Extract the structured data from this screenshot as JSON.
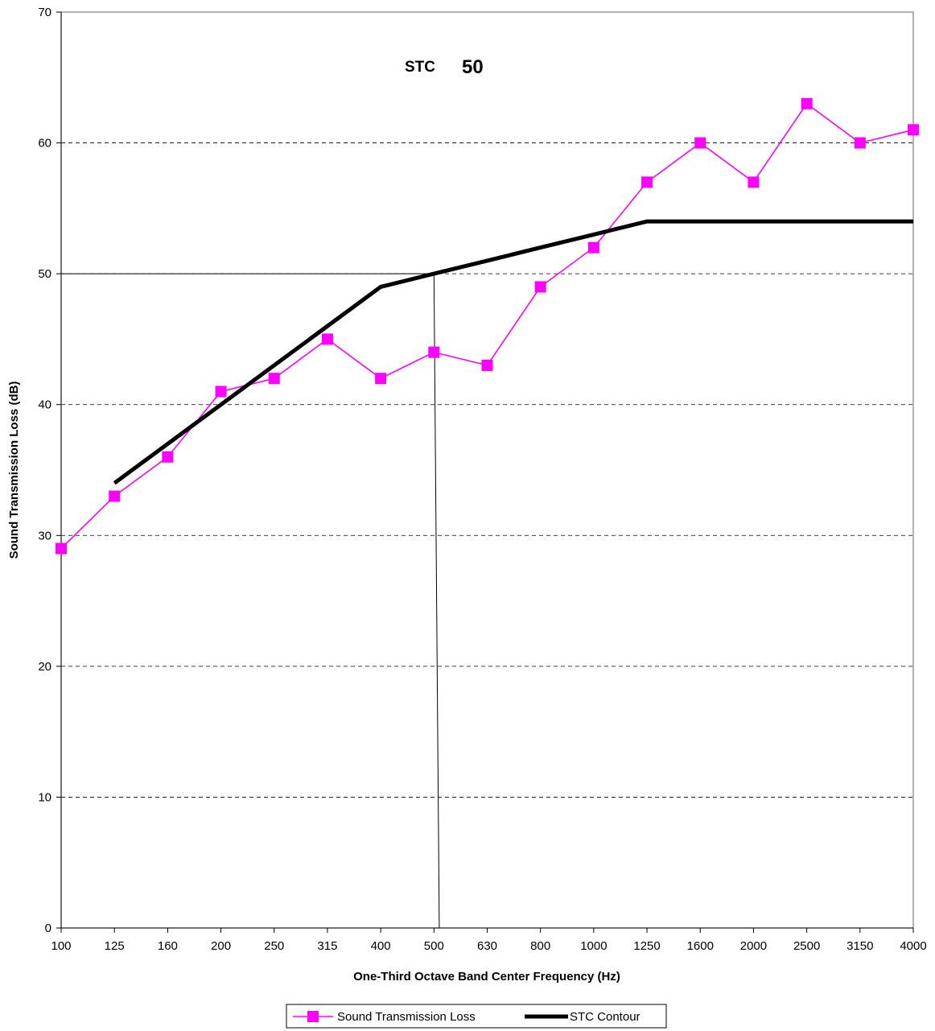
{
  "chart_data": {
    "type": "line",
    "title": "",
    "annotation": {
      "prefix": "STC",
      "value": "50"
    },
    "xlabel": "One-Third Octave Band Center Frequency (Hz)",
    "ylabel": "Sound Transmission Loss (dB)",
    "categories": [
      "100",
      "125",
      "160",
      "200",
      "250",
      "315",
      "400",
      "500",
      "630",
      "800",
      "1000",
      "1250",
      "1600",
      "2000",
      "2500",
      "3150",
      "4000"
    ],
    "ylim": [
      0,
      70
    ],
    "yticks": [
      "0",
      "10",
      "20",
      "30",
      "40",
      "50",
      "60",
      "70"
    ],
    "grid": "horizontal-dashed",
    "legend_position": "bottom",
    "series": [
      {
        "name": "Sound Transmission Loss",
        "color": "#ff00ff",
        "marker": "square",
        "values": [
          29,
          33,
          36,
          41,
          42,
          45,
          42,
          44,
          43,
          49,
          52,
          57,
          60,
          57,
          63,
          60,
          61
        ]
      },
      {
        "name": "STC Contour",
        "color": "#000000",
        "marker": "none",
        "values": [
          null,
          34,
          37,
          40,
          43,
          46,
          49,
          50,
          51,
          52,
          53,
          54,
          54,
          54,
          54,
          54,
          54
        ]
      }
    ],
    "reference_lines": {
      "y": 50,
      "x_category": "500"
    }
  }
}
